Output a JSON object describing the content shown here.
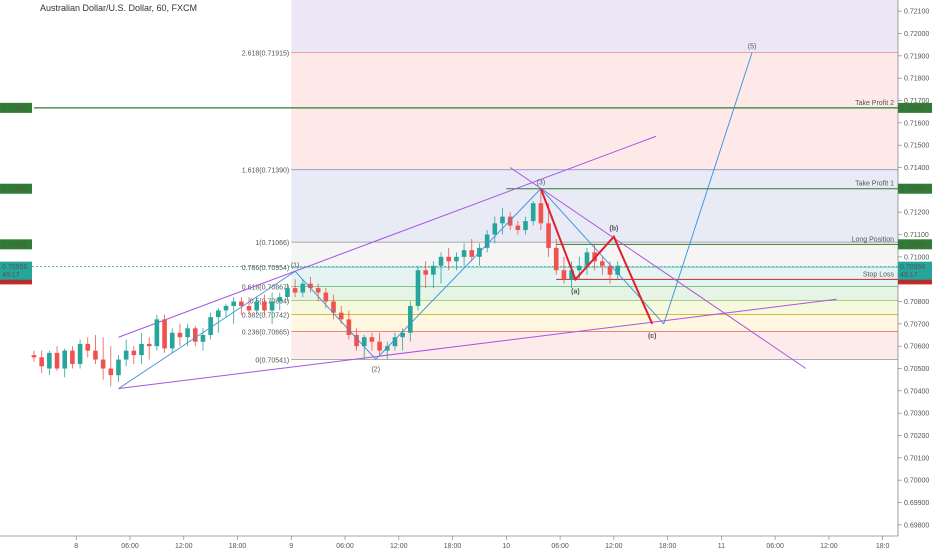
{
  "header": {
    "symbol_title": "Australian Dollar/U.S. Dollar, 60, FXCM"
  },
  "colors": {
    "bull": "#26a69a",
    "bear": "#ef5350",
    "fib_purple": "#9b59e0",
    "elliott_blue": "#3a8fd6",
    "abc_red": "#e0202a",
    "tp_green": "#2e7d32",
    "current_teal": "#26a69a",
    "stop_red": "#c62828"
  },
  "chart_data": {
    "type": "candlestick",
    "title": "Australian Dollar/U.S. Dollar, 60, FXCM",
    "ylim": [
      0.6975,
      0.7215
    ],
    "xlim": [
      0,
      225
    ],
    "y_ticks": [
      "0.72100",
      "0.72000",
      "0.71900",
      "0.71800",
      "0.71700",
      "0.71600",
      "0.71500",
      "0.71400",
      "0.71300",
      "0.71200",
      "0.71100",
      "0.71000",
      "0.70900",
      "0.70800",
      "0.70700",
      "0.70600",
      "0.70500",
      "0.70400",
      "0.70300",
      "0.70200",
      "0.70100",
      "0.70000",
      "0.69900",
      "0.69800"
    ],
    "x_ticks": [
      {
        "x": 11,
        "label": "8"
      },
      {
        "x": 25,
        "label": "06:00"
      },
      {
        "x": 39,
        "label": "12:00"
      },
      {
        "x": 53,
        "label": "18:00"
      },
      {
        "x": 67,
        "label": "9"
      },
      {
        "x": 81,
        "label": "06:00"
      },
      {
        "x": 95,
        "label": "12:00"
      },
      {
        "x": 109,
        "label": "18:00"
      },
      {
        "x": 123,
        "label": "10"
      },
      {
        "x": 137,
        "label": "06:00"
      },
      {
        "x": 151,
        "label": "12:00"
      },
      {
        "x": 165,
        "label": "18:00"
      },
      {
        "x": 179,
        "label": "11"
      },
      {
        "x": 193,
        "label": "06:00"
      },
      {
        "x": 207,
        "label": "12:00"
      },
      {
        "x": 221,
        "label": "18:0"
      }
    ],
    "candles": [
      [
        0,
        0.7056,
        0.7058,
        0.7053,
        0.7055
      ],
      [
        2,
        0.7055,
        0.7058,
        0.7048,
        0.7051
      ],
      [
        4,
        0.705,
        0.7058,
        0.7047,
        0.7057
      ],
      [
        6,
        0.7057,
        0.706,
        0.7049,
        0.705
      ],
      [
        8,
        0.705,
        0.7059,
        0.7046,
        0.7058
      ],
      [
        10,
        0.7058,
        0.706,
        0.705,
        0.7052
      ],
      [
        12,
        0.7052,
        0.7063,
        0.705,
        0.7061
      ],
      [
        14,
        0.7061,
        0.7064,
        0.7055,
        0.7058
      ],
      [
        16,
        0.7058,
        0.7065,
        0.7052,
        0.7054
      ],
      [
        18,
        0.7054,
        0.7064,
        0.7045,
        0.705
      ],
      [
        20,
        0.705,
        0.706,
        0.7042,
        0.7047
      ],
      [
        22,
        0.7047,
        0.7056,
        0.7044,
        0.7054
      ],
      [
        24,
        0.7054,
        0.7063,
        0.7051,
        0.7058
      ],
      [
        26,
        0.7058,
        0.706,
        0.7052,
        0.7056
      ],
      [
        28,
        0.7056,
        0.7066,
        0.7052,
        0.7061
      ],
      [
        30,
        0.7061,
        0.7064,
        0.7054,
        0.706
      ],
      [
        32,
        0.706,
        0.7074,
        0.7058,
        0.7072
      ],
      [
        34,
        0.7072,
        0.7074,
        0.7057,
        0.7059
      ],
      [
        36,
        0.7059,
        0.7068,
        0.7057,
        0.7066
      ],
      [
        38,
        0.7066,
        0.707,
        0.706,
        0.7064
      ],
      [
        40,
        0.7064,
        0.707,
        0.706,
        0.7068
      ],
      [
        42,
        0.7068,
        0.7069,
        0.706,
        0.7062
      ],
      [
        44,
        0.7062,
        0.7068,
        0.7058,
        0.7065
      ],
      [
        46,
        0.7065,
        0.7075,
        0.7063,
        0.7073
      ],
      [
        48,
        0.7073,
        0.7077,
        0.7066,
        0.7076
      ],
      [
        50,
        0.7076,
        0.7079,
        0.7073,
        0.7078
      ],
      [
        52,
        0.7078,
        0.7082,
        0.707,
        0.708
      ],
      [
        54,
        0.708,
        0.7082,
        0.7074,
        0.7078
      ],
      [
        56,
        0.7078,
        0.7082,
        0.7074,
        0.7076
      ],
      [
        58,
        0.7076,
        0.7082,
        0.7074,
        0.708
      ],
      [
        60,
        0.708,
        0.7083,
        0.7074,
        0.7076
      ],
      [
        62,
        0.7076,
        0.7084,
        0.707,
        0.708
      ],
      [
        64,
        0.708,
        0.7084,
        0.7076,
        0.7082
      ],
      [
        66,
        0.7082,
        0.7088,
        0.708,
        0.7086
      ],
      [
        68,
        0.7086,
        0.709,
        0.7082,
        0.7084
      ],
      [
        70,
        0.7084,
        0.709,
        0.7082,
        0.7088
      ],
      [
        72,
        0.7088,
        0.7091,
        0.7084,
        0.7086
      ],
      [
        74,
        0.7086,
        0.7088,
        0.708,
        0.7084
      ],
      [
        76,
        0.7084,
        0.7086,
        0.7077,
        0.708
      ],
      [
        78,
        0.708,
        0.7083,
        0.7072,
        0.7075
      ],
      [
        80,
        0.7075,
        0.7078,
        0.707,
        0.7072
      ],
      [
        82,
        0.7072,
        0.7076,
        0.7063,
        0.7065
      ],
      [
        84,
        0.7065,
        0.7068,
        0.7058,
        0.706
      ],
      [
        86,
        0.706,
        0.7065,
        0.7054,
        0.7064
      ],
      [
        88,
        0.7064,
        0.7066,
        0.7058,
        0.7062
      ],
      [
        90,
        0.7062,
        0.7066,
        0.7056,
        0.7058
      ],
      [
        92,
        0.7058,
        0.7062,
        0.7054,
        0.706
      ],
      [
        94,
        0.706,
        0.7066,
        0.7058,
        0.7064
      ],
      [
        96,
        0.7064,
        0.7068,
        0.7058,
        0.7066
      ],
      [
        98,
        0.7066,
        0.708,
        0.7062,
        0.7078
      ],
      [
        100,
        0.7078,
        0.7096,
        0.7076,
        0.7094
      ],
      [
        102,
        0.7094,
        0.7098,
        0.7086,
        0.7092
      ],
      [
        104,
        0.7092,
        0.7098,
        0.7086,
        0.7096
      ],
      [
        106,
        0.7096,
        0.7102,
        0.7088,
        0.71
      ],
      [
        108,
        0.71,
        0.7104,
        0.7094,
        0.7098
      ],
      [
        110,
        0.7098,
        0.7102,
        0.7094,
        0.71
      ],
      [
        112,
        0.71,
        0.7106,
        0.7096,
        0.7103
      ],
      [
        114,
        0.7103,
        0.7108,
        0.7098,
        0.71
      ],
      [
        116,
        0.71,
        0.7106,
        0.7096,
        0.7104
      ],
      [
        118,
        0.7104,
        0.7112,
        0.7102,
        0.711
      ],
      [
        120,
        0.711,
        0.7118,
        0.7106,
        0.7115
      ],
      [
        122,
        0.7115,
        0.7122,
        0.711,
        0.7118
      ],
      [
        124,
        0.7118,
        0.712,
        0.7112,
        0.7114
      ],
      [
        126,
        0.7114,
        0.7116,
        0.711,
        0.7112
      ],
      [
        128,
        0.7112,
        0.7118,
        0.711,
        0.7116
      ],
      [
        130,
        0.7116,
        0.7125,
        0.7114,
        0.7124
      ],
      [
        132,
        0.7124,
        0.713,
        0.7112,
        0.7115
      ],
      [
        134,
        0.7115,
        0.7124,
        0.71,
        0.7104
      ],
      [
        136,
        0.7104,
        0.7108,
        0.7092,
        0.7094
      ],
      [
        138,
        0.7094,
        0.71,
        0.7088,
        0.709
      ],
      [
        140,
        0.709,
        0.7098,
        0.7086,
        0.7094
      ],
      [
        142,
        0.7094,
        0.71,
        0.709,
        0.7096
      ],
      [
        144,
        0.7096,
        0.7104,
        0.7092,
        0.7102
      ],
      [
        146,
        0.7102,
        0.7106,
        0.7094,
        0.7098
      ],
      [
        148,
        0.7098,
        0.71,
        0.7092,
        0.7096
      ],
      [
        150,
        0.7096,
        0.7098,
        0.7088,
        0.7092
      ],
      [
        152,
        0.7092,
        0.7098,
        0.709,
        0.7096
      ]
    ],
    "current_price": 0.70956,
    "fib_retracement": {
      "x_start": 67,
      "x_end": 225,
      "levels": [
        {
          "ratio": "2.618",
          "price": 0.71915,
          "label": "2.618(0.71915)",
          "color": "#e57373",
          "fill": "rgba(239,83,80,0.13)"
        },
        {
          "ratio": "1.618",
          "price": 0.7139,
          "label": "1.618(0.71390)",
          "color": "#5c6bc0",
          "fill": "rgba(92,107,192,0.14)"
        },
        {
          "ratio": "1",
          "price": 0.71066,
          "label": "1(0.71066)",
          "color": "#777777",
          "fill": "rgba(180,180,180,0.13)"
        },
        {
          "ratio": "0.786",
          "price": 0.70954,
          "label": "0.786(0.70954)",
          "color": "#26a69a",
          "fill": "rgba(0,150,136,0.10)"
        },
        {
          "ratio": "0.618",
          "price": 0.70867,
          "label": "0.618(0.70867)",
          "color": "#43a047",
          "fill": "rgba(76,175,80,0.14)"
        },
        {
          "ratio": "0.5",
          "price": 0.70804,
          "label": "0.5(0.70804)",
          "color": "#7cb342",
          "fill": "rgba(205,220,57,0.16)"
        },
        {
          "ratio": "0.382",
          "price": 0.70742,
          "label": "0.382(0.70742)",
          "color": "#c0a000",
          "fill": "rgba(255,193,7,0.13)"
        },
        {
          "ratio": "0.236",
          "price": 0.70665,
          "label": "0.236(0.70665)",
          "color": "#e53935",
          "fill": "rgba(239,83,80,0.12)"
        },
        {
          "ratio": "0",
          "price": 0.70541,
          "label": "0(0.70541)",
          "color": "#777777",
          "fill": ""
        }
      ],
      "top_fill": "rgba(149,117,205,0.18)",
      "top_price": 0.7215
    },
    "horizontal_lines": [
      {
        "name": "Take Profit 2",
        "price": 0.71667,
        "price_label": "0.71667",
        "color": "#2e7d32",
        "x_from": 0,
        "width": 1.2
      },
      {
        "name": "Take Profit 1",
        "price": 0.71305,
        "price_label": "0.71305",
        "color": "#2e7d32",
        "x_from": 123,
        "width": 1
      },
      {
        "name": "Long Position",
        "price": 0.71056,
        "price_label": "0.71056",
        "color": "#2e7d32",
        "x_from": 136,
        "width": 1
      },
      {
        "name": "Stop Loss",
        "price": 0.70899,
        "price_label": "0.70899",
        "color": "#c62828",
        "x_from": 136,
        "width": 1
      }
    ],
    "price_labels_extra": [
      {
        "price": 0.70956,
        "text": "0.70956",
        "color": "#26a69a"
      },
      {
        "price": 0.7092,
        "text": "49:17",
        "color": "#26a69a"
      }
    ],
    "elliott_waves": {
      "points": [
        {
          "x": 22,
          "y": 0.7041,
          "label": ""
        },
        {
          "x": 68,
          "y": 0.70935,
          "label": "(1)"
        },
        {
          "x": 89,
          "y": 0.70541,
          "label": "(2)"
        },
        {
          "x": 132,
          "y": 0.71305,
          "label": "(3)"
        },
        {
          "x": 164,
          "y": 0.707,
          "label": ""
        },
        {
          "x": 187,
          "y": 0.71915,
          "label": "(5)"
        }
      ],
      "abc": [
        {
          "x": 132,
          "y": 0.71305,
          "label": ""
        },
        {
          "x": 141,
          "y": 0.70899,
          "label": "(a)"
        },
        {
          "x": 151,
          "y": 0.7109,
          "label": "(b)"
        },
        {
          "x": 161,
          "y": 0.707,
          "label": "(c)"
        }
      ],
      "abc_thin": [
        {
          "x": 132,
          "y": 0.71305
        },
        {
          "x": 141,
          "y": 0.70899
        },
        {
          "x": 151,
          "y": 0.7109
        },
        {
          "x": 161,
          "y": 0.707
        }
      ],
      "wave1_extra": [
        {
          "x": 28,
          "y": 0.7046
        },
        {
          "x": 68,
          "y": 0.70935
        }
      ]
    },
    "trend_lines": [
      {
        "x1": 22,
        "y1": 0.7064,
        "x2": 162,
        "y2": 0.7154,
        "color": "#a855e0"
      },
      {
        "x1": 22,
        "y1": 0.7041,
        "x2": 209,
        "y2": 0.7081,
        "color": "#a855e0"
      },
      {
        "x1": 124,
        "y1": 0.714,
        "x2": 201,
        "y2": 0.705,
        "color": "#a855e0"
      }
    ]
  }
}
